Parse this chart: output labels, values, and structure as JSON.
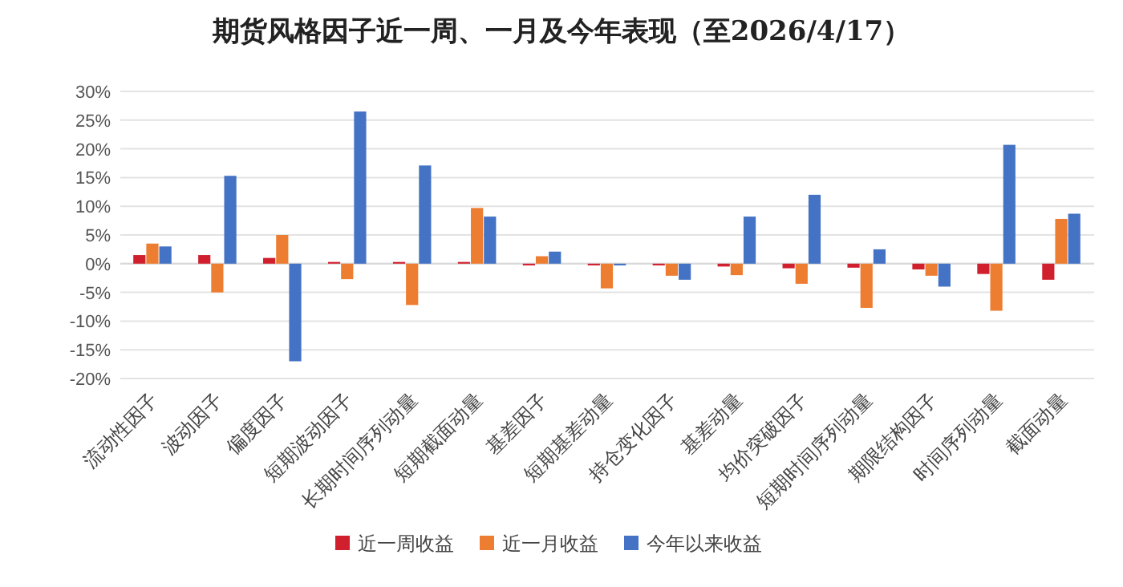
{
  "chart_data": {
    "type": "bar",
    "title": "期货风格因子近一周、一月及今年表现（至2026/4/17）",
    "categories": [
      "流动性因子",
      "波动因子",
      "偏度因子",
      "短期波动因子",
      "长期时间序列动量",
      "短期截面动量",
      "基差因子",
      "短期基差动量",
      "持仓变化因子",
      "基差动量",
      "均价突破因子",
      "短期时间序列动量",
      "期限结构因子",
      "时间序列动量",
      "截面动量"
    ],
    "series": [
      {
        "name": "近一周收益",
        "color": "#d0202e",
        "values": [
          1.5,
          1.5,
          1.0,
          0.3,
          0.3,
          0.3,
          -0.3,
          -0.3,
          -0.3,
          -0.5,
          -0.8,
          -0.7,
          -1.0,
          -1.8,
          -2.8
        ]
      },
      {
        "name": "近一月收益",
        "color": "#ed7d31",
        "values": [
          3.5,
          -5.0,
          5.0,
          -2.7,
          -7.2,
          9.7,
          1.3,
          -4.3,
          -2.1,
          -2.0,
          -3.5,
          -7.7,
          -2.1,
          -8.2,
          7.8
        ]
      },
      {
        "name": "今年以来收益",
        "color": "#4472c4",
        "values": [
          3.0,
          15.3,
          -17.0,
          26.5,
          17.1,
          8.2,
          2.1,
          -0.3,
          -2.8,
          8.2,
          12.0,
          2.5,
          -4.0,
          20.7,
          8.7
        ]
      }
    ],
    "ylim": [
      -20,
      30
    ],
    "yticks": [
      {
        "value": 30,
        "label": "30%"
      },
      {
        "value": 25,
        "label": "25%"
      },
      {
        "value": 20,
        "label": "20%"
      },
      {
        "value": 15,
        "label": "15%"
      },
      {
        "value": 10,
        "label": "10%"
      },
      {
        "value": 5,
        "label": "5%"
      },
      {
        "value": 0,
        "label": "0%"
      },
      {
        "value": -5,
        "label": "-5%"
      },
      {
        "value": -10,
        "label": "-10%"
      },
      {
        "value": -15,
        "label": "-15%"
      },
      {
        "value": -20,
        "label": "-20%"
      }
    ],
    "grid": "y",
    "legend": "bottom"
  }
}
